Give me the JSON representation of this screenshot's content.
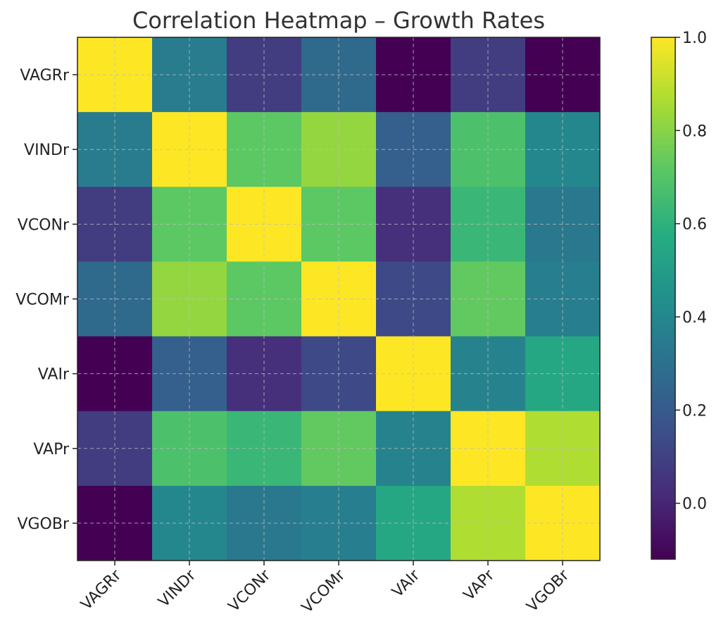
{
  "chart_data": {
    "type": "heatmap",
    "title": "Correlation Heatmap – Growth Rates",
    "x_categories": [
      "VAGRr",
      "VINDr",
      "VCONr",
      "VCOMr",
      "VAIr",
      "VAPr",
      "VGOBr"
    ],
    "y_categories": [
      "VAGRr",
      "VINDr",
      "VCONr",
      "VCOMr",
      "VAIr",
      "VAPr",
      "VGOBr"
    ],
    "values": [
      [
        1.0,
        0.35,
        0.08,
        0.27,
        -0.12,
        0.08,
        -0.12
      ],
      [
        0.35,
        1.0,
        0.72,
        0.82,
        0.22,
        0.68,
        0.4
      ],
      [
        0.08,
        0.72,
        1.0,
        0.72,
        0.03,
        0.63,
        0.33
      ],
      [
        0.27,
        0.82,
        0.72,
        1.0,
        0.13,
        0.73,
        0.36
      ],
      [
        -0.12,
        0.22,
        0.03,
        0.13,
        1.0,
        0.38,
        0.55
      ],
      [
        0.08,
        0.68,
        0.63,
        0.73,
        0.38,
        1.0,
        0.87
      ],
      [
        -0.12,
        0.4,
        0.33,
        0.36,
        0.55,
        0.87,
        1.0
      ]
    ],
    "colormap": "viridis",
    "color_range": [
      -0.12,
      1.0
    ],
    "colorbar_ticks": [
      "0.0",
      "0.2",
      "0.4",
      "0.6",
      "0.8",
      "1.0"
    ],
    "grid": true
  }
}
